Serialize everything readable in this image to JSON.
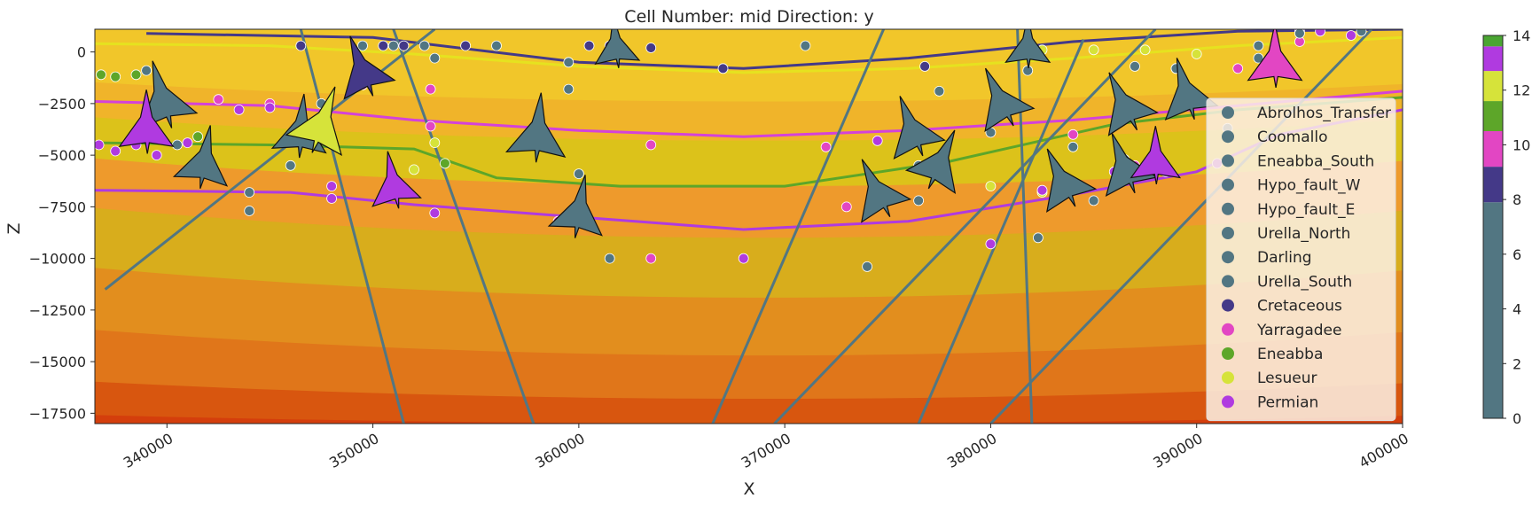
{
  "chart_data": {
    "type": "cross-section",
    "title": "Cell Number: mid Direction: y",
    "xlabel": "X",
    "ylabel": "Z",
    "xlim": [
      336500,
      400000
    ],
    "ylim": [
      -18000,
      1100
    ],
    "xticks": [
      {
        "value": 340000,
        "label": "340000"
      },
      {
        "value": 350000,
        "label": "350000"
      },
      {
        "value": 360000,
        "label": "360000"
      },
      {
        "value": 370000,
        "label": "370000"
      },
      {
        "value": 380000,
        "label": "380000"
      },
      {
        "value": 390000,
        "label": "390000"
      },
      {
        "value": 400000,
        "label": "400000"
      }
    ],
    "yticks": [
      {
        "value": 0,
        "label": "0"
      },
      {
        "value": -2500,
        "label": "−2500"
      },
      {
        "value": -5000,
        "label": "−5000"
      },
      {
        "value": -7500,
        "label": "−7500"
      },
      {
        "value": -10000,
        "label": "−10000"
      },
      {
        "value": -12500,
        "label": "−12500"
      },
      {
        "value": -15000,
        "label": "−15000"
      },
      {
        "value": -17500,
        "label": "−17500"
      }
    ],
    "colorbar": {
      "range": [
        0,
        14
      ],
      "ticks": [
        {
          "value": 0,
          "label": "0"
        },
        {
          "value": 2,
          "label": "2"
        },
        {
          "value": 4,
          "label": "4"
        },
        {
          "value": 6,
          "label": "6"
        },
        {
          "value": 8,
          "label": "8"
        },
        {
          "value": 10,
          "label": "10"
        },
        {
          "value": 12,
          "label": "12"
        },
        {
          "value": 14,
          "label": "14"
        }
      ],
      "segments": [
        {
          "from": 0,
          "to": 7.9,
          "color": "#527682"
        },
        {
          "from": 7.9,
          "to": 9.2,
          "color": "#443988"
        },
        {
          "from": 9.2,
          "to": 10.5,
          "color": "#e246c3"
        },
        {
          "from": 10.5,
          "to": 11.6,
          "color": "#5da629"
        },
        {
          "from": 11.6,
          "to": 12.7,
          "color": "#d6e33a"
        },
        {
          "from": 12.7,
          "to": 13.6,
          "color": "#b03ae0"
        },
        {
          "from": 13.6,
          "to": 14,
          "color": "#4aa532"
        }
      ]
    },
    "legend_position": "right",
    "legend": [
      {
        "label": "Abrolhos_Transfer",
        "color": "#527682"
      },
      {
        "label": "Coomallo",
        "color": "#527682"
      },
      {
        "label": "Eneabba_South",
        "color": "#527682"
      },
      {
        "label": "Hypo_fault_W",
        "color": "#527682"
      },
      {
        "label": "Hypo_fault_E",
        "color": "#527682"
      },
      {
        "label": "Urella_North",
        "color": "#527682"
      },
      {
        "label": "Darling",
        "color": "#527682"
      },
      {
        "label": "Urella_South",
        "color": "#527682"
      },
      {
        "label": "Cretaceous",
        "color": "#443988"
      },
      {
        "label": "Yarragadee",
        "color": "#e246c3"
      },
      {
        "label": "Eneabba",
        "color": "#5da629"
      },
      {
        "label": "Lesueur",
        "color": "#d6e33a"
      },
      {
        "label": "Permian",
        "color": "#b03ae0"
      }
    ],
    "background_bands": [
      {
        "top": 0,
        "dip": 0,
        "color": "#f1c62a"
      },
      {
        "top": -1500,
        "dip": 900,
        "color": "#f0b42a"
      },
      {
        "top": -3200,
        "dip": 1100,
        "color": "#dcc21a"
      },
      {
        "top": -5200,
        "dip": 1300,
        "color": "#ee9a2c"
      },
      {
        "top": -7600,
        "dip": 1400,
        "color": "#d8ad1c"
      },
      {
        "top": -10500,
        "dip": 1400,
        "color": "#e28e1e"
      },
      {
        "top": -13500,
        "dip": 1200,
        "color": "#e0761a"
      },
      {
        "top": -16000,
        "dip": 800,
        "color": "#d8560f"
      },
      {
        "top": -17600,
        "dip": 400,
        "color": "#d43e0c"
      }
    ],
    "horizon_lines": [
      {
        "name": "Cretaceous",
        "color": "#443988",
        "points": [
          [
            339000,
            900
          ],
          [
            350000,
            700
          ],
          [
            360000,
            -500
          ],
          [
            368000,
            -800
          ],
          [
            376000,
            -300
          ],
          [
            384000,
            500
          ],
          [
            392000,
            1000
          ],
          [
            400000,
            1100
          ]
        ]
      },
      {
        "name": "Lesueur",
        "color": "#e6e21f",
        "points": [
          [
            336500,
            400
          ],
          [
            345000,
            300
          ],
          [
            352000,
            -100
          ],
          [
            360000,
            -700
          ],
          [
            368000,
            -1000
          ],
          [
            376000,
            -800
          ],
          [
            384000,
            -300
          ],
          [
            392000,
            300
          ],
          [
            400000,
            700
          ]
        ]
      },
      {
        "name": "Yarragadee-upper",
        "color": "#d442d9",
        "points": [
          [
            336500,
            -2400
          ],
          [
            345000,
            -2600
          ],
          [
            352000,
            -3300
          ],
          [
            360000,
            -3800
          ],
          [
            368000,
            -4100
          ],
          [
            376000,
            -3800
          ],
          [
            384000,
            -3300
          ],
          [
            392000,
            -2600
          ],
          [
            400000,
            -1900
          ]
        ]
      },
      {
        "name": "Eneabba",
        "color": "#5da629",
        "points": [
          [
            336500,
            -4400
          ],
          [
            345000,
            -4500
          ],
          [
            352000,
            -4700
          ],
          [
            356000,
            -6100
          ],
          [
            362000,
            -6500
          ],
          [
            370000,
            -6500
          ],
          [
            378000,
            -5300
          ],
          [
            386000,
            -3500
          ],
          [
            392000,
            -2800
          ],
          [
            400000,
            -2200
          ]
        ]
      },
      {
        "name": "Permian",
        "color": "#b03ae0",
        "points": [
          [
            336500,
            -6700
          ],
          [
            346000,
            -6800
          ],
          [
            352000,
            -7400
          ],
          [
            360000,
            -8000
          ],
          [
            368000,
            -8600
          ],
          [
            376000,
            -8200
          ],
          [
            384000,
            -6900
          ],
          [
            390000,
            -5800
          ],
          [
            394000,
            -4000
          ],
          [
            400000,
            -2800
          ]
        ]
      }
    ],
    "fault_lines": [
      {
        "name": "Abrolhos_Transfer",
        "points": [
          [
            337000,
            -11500
          ],
          [
            353000,
            1100
          ]
        ]
      },
      {
        "name": "Coomallo",
        "points": [
          [
            346500,
            1100
          ],
          [
            351500,
            -18000
          ]
        ]
      },
      {
        "name": "Eneabba_South",
        "points": [
          [
            351000,
            1100
          ],
          [
            357800,
            -18000
          ]
        ]
      },
      {
        "name": "Hypo_fault_W",
        "points": [
          [
            366500,
            -18000
          ],
          [
            374800,
            1100
          ]
        ]
      },
      {
        "name": "Hypo_fault_E",
        "points": [
          [
            369500,
            -18000
          ],
          [
            388000,
            1100
          ]
        ]
      },
      {
        "name": "Urella_North",
        "points": [
          [
            376500,
            -18000
          ],
          [
            384500,
            600
          ]
        ]
      },
      {
        "name": "Darling",
        "points": [
          [
            381300,
            1100
          ],
          [
            382000,
            -18000
          ]
        ]
      },
      {
        "name": "Urella_South",
        "points": [
          [
            380000,
            -18000
          ],
          [
            398500,
            1100
          ]
        ]
      }
    ],
    "surface_points": [
      {
        "unit": "Cretaceous",
        "color": "#443988",
        "points": [
          [
            346500,
            300
          ],
          [
            350500,
            300
          ],
          [
            351500,
            300
          ],
          [
            354500,
            300
          ],
          [
            360500,
            300
          ],
          [
            361500,
            300
          ],
          [
            363500,
            200
          ],
          [
            367000,
            -800
          ],
          [
            376800,
            -700
          ]
        ]
      },
      {
        "unit": "Yarragadee",
        "color": "#e246c3",
        "points": [
          [
            342500,
            -2300
          ],
          [
            345000,
            -2500
          ],
          [
            349500,
            -1600
          ],
          [
            352800,
            -1800
          ],
          [
            352800,
            -3600
          ],
          [
            359000,
            -8200
          ],
          [
            363500,
            -4500
          ],
          [
            363500,
            -10000
          ],
          [
            372000,
            -4600
          ],
          [
            373000,
            -7500
          ],
          [
            384000,
            -4000
          ],
          [
            387000,
            -5500
          ],
          [
            389000,
            -800
          ],
          [
            392000,
            -800
          ],
          [
            395000,
            500
          ]
        ]
      },
      {
        "unit": "Eneabba",
        "color": "#5da629",
        "points": [
          [
            336800,
            -1100
          ],
          [
            337500,
            -1200
          ],
          [
            338500,
            -1100
          ],
          [
            341500,
            -4100
          ],
          [
            353500,
            -5400
          ]
        ]
      },
      {
        "unit": "Lesueur",
        "color": "#d6e33a",
        "points": [
          [
            352000,
            -5700
          ],
          [
            353000,
            -4400
          ],
          [
            382500,
            100
          ],
          [
            385000,
            100
          ],
          [
            387500,
            100
          ],
          [
            390000,
            -100
          ],
          [
            380000,
            -6500
          ],
          [
            382500,
            -6800
          ]
        ]
      },
      {
        "unit": "Permian",
        "color": "#b03ae0",
        "points": [
          [
            336700,
            -4500
          ],
          [
            337500,
            -4800
          ],
          [
            338500,
            -4500
          ],
          [
            339500,
            -5000
          ],
          [
            341000,
            -4400
          ],
          [
            343500,
            -2800
          ],
          [
            345000,
            -2700
          ],
          [
            348000,
            -6500
          ],
          [
            348000,
            -7100
          ],
          [
            353000,
            -7800
          ],
          [
            368000,
            -10000
          ],
          [
            374500,
            -4300
          ],
          [
            380000,
            -9300
          ],
          [
            382500,
            -6700
          ],
          [
            386000,
            -5800
          ],
          [
            388500,
            -5800
          ],
          [
            391000,
            -5400
          ],
          [
            395000,
            1000
          ],
          [
            396000,
            1000
          ],
          [
            397500,
            800
          ]
        ]
      },
      {
        "unit": "Faults",
        "color": "#527682",
        "points": [
          [
            339000,
            -900
          ],
          [
            340500,
            -4500
          ],
          [
            344000,
            -6800
          ],
          [
            344000,
            -7700
          ],
          [
            346000,
            -5500
          ],
          [
            347500,
            -2500
          ],
          [
            349500,
            300
          ],
          [
            351000,
            300
          ],
          [
            352500,
            300
          ],
          [
            353000,
            -300
          ],
          [
            356000,
            300
          ],
          [
            359500,
            -1800
          ],
          [
            359500,
            -500
          ],
          [
            360000,
            -5900
          ],
          [
            361500,
            -10000
          ],
          [
            371000,
            300
          ],
          [
            374000,
            -10400
          ],
          [
            376500,
            -5500
          ],
          [
            376500,
            -7200
          ],
          [
            377500,
            -1900
          ],
          [
            380000,
            -3900
          ],
          [
            381800,
            -900
          ],
          [
            382300,
            -9000
          ],
          [
            384000,
            -4600
          ],
          [
            385000,
            -7200
          ],
          [
            386500,
            -5200
          ],
          [
            387000,
            -700
          ],
          [
            389000,
            -800
          ],
          [
            391500,
            -3700
          ],
          [
            393000,
            -300
          ],
          [
            393000,
            300
          ],
          [
            395000,
            900
          ],
          [
            398000,
            1000
          ]
        ]
      }
    ],
    "orientations": [
      {
        "color": "#527682",
        "x": 339800,
        "z": -2300,
        "dir": -15,
        "size": 60
      },
      {
        "color": "#527682",
        "x": 341800,
        "z": -5300,
        "dir": 10,
        "size": 55
      },
      {
        "color": "#527682",
        "x": 346500,
        "z": -3800,
        "dir": 5,
        "size": 55
      },
      {
        "color": "#b03ae0",
        "x": 339000,
        "z": -3600,
        "dir": 0,
        "size": 55
      },
      {
        "color": "#d6e33a",
        "x": 347500,
        "z": -3500,
        "dir": 20,
        "size": 60
      },
      {
        "color": "#443988",
        "x": 349500,
        "z": -900,
        "dir": -20,
        "size": 55
      },
      {
        "color": "#b03ae0",
        "x": 351000,
        "z": -6400,
        "dir": -10,
        "size": 50
      },
      {
        "color": "#527682",
        "x": 358000,
        "z": -3900,
        "dir": 5,
        "size": 60
      },
      {
        "color": "#527682",
        "x": 360000,
        "z": -7700,
        "dir": 10,
        "size": 55
      },
      {
        "color": "#527682",
        "x": 361800,
        "z": 300,
        "dir": -5,
        "size": 45
      },
      {
        "color": "#527682",
        "x": 374500,
        "z": -6800,
        "dir": -25,
        "size": 55
      },
      {
        "color": "#527682",
        "x": 376200,
        "z": -3800,
        "dir": -20,
        "size": 55
      },
      {
        "color": "#527682",
        "x": 377500,
        "z": -5400,
        "dir": 25,
        "size": 55
      },
      {
        "color": "#527682",
        "x": 380500,
        "z": -2400,
        "dir": -25,
        "size": 55
      },
      {
        "color": "#527682",
        "x": 381800,
        "z": 300,
        "dir": 0,
        "size": 45
      },
      {
        "color": "#527682",
        "x": 383500,
        "z": -6300,
        "dir": -25,
        "size": 55
      },
      {
        "color": "#527682",
        "x": 386500,
        "z": -2600,
        "dir": -25,
        "size": 55
      },
      {
        "color": "#527682",
        "x": 386500,
        "z": -5600,
        "dir": -20,
        "size": 55
      },
      {
        "color": "#527682",
        "x": 389500,
        "z": -2000,
        "dir": -15,
        "size": 55
      },
      {
        "color": "#b03ae0",
        "x": 388000,
        "z": -5200,
        "dir": 0,
        "size": 50
      },
      {
        "color": "#e246c3",
        "x": 393800,
        "z": -400,
        "dir": 0,
        "size": 55
      }
    ]
  }
}
